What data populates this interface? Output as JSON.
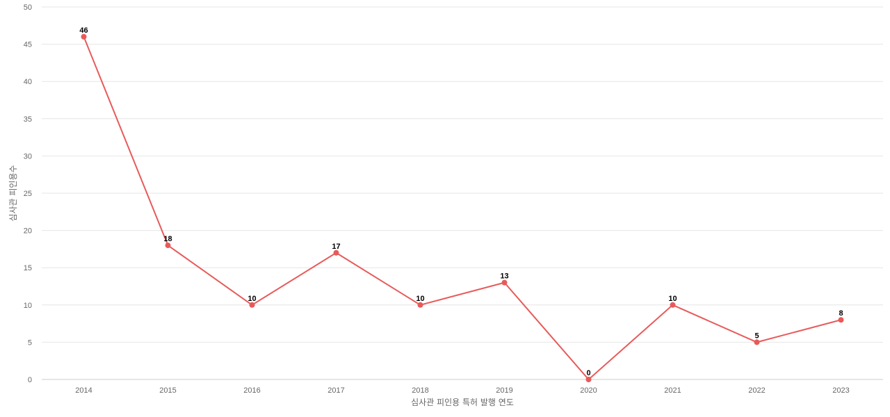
{
  "chart_data": {
    "type": "line",
    "title": "",
    "xlabel": "심사관 피인용 특허 발행 연도",
    "ylabel": "심사관 피인용수",
    "categories": [
      "2014",
      "2015",
      "2016",
      "2017",
      "2018",
      "2019",
      "2020",
      "2021",
      "2022",
      "2023"
    ],
    "series": [
      {
        "values": [
          46,
          18,
          10,
          17,
          10,
          13,
          0,
          10,
          5,
          8
        ],
        "color": "#e85a5a"
      }
    ],
    "ylim": [
      0,
      50
    ],
    "yticks": [
      "0",
      "5",
      "10",
      "15",
      "20",
      "25",
      "30",
      "35",
      "40",
      "45",
      "50"
    ],
    "grid": true,
    "legend": "none"
  }
}
